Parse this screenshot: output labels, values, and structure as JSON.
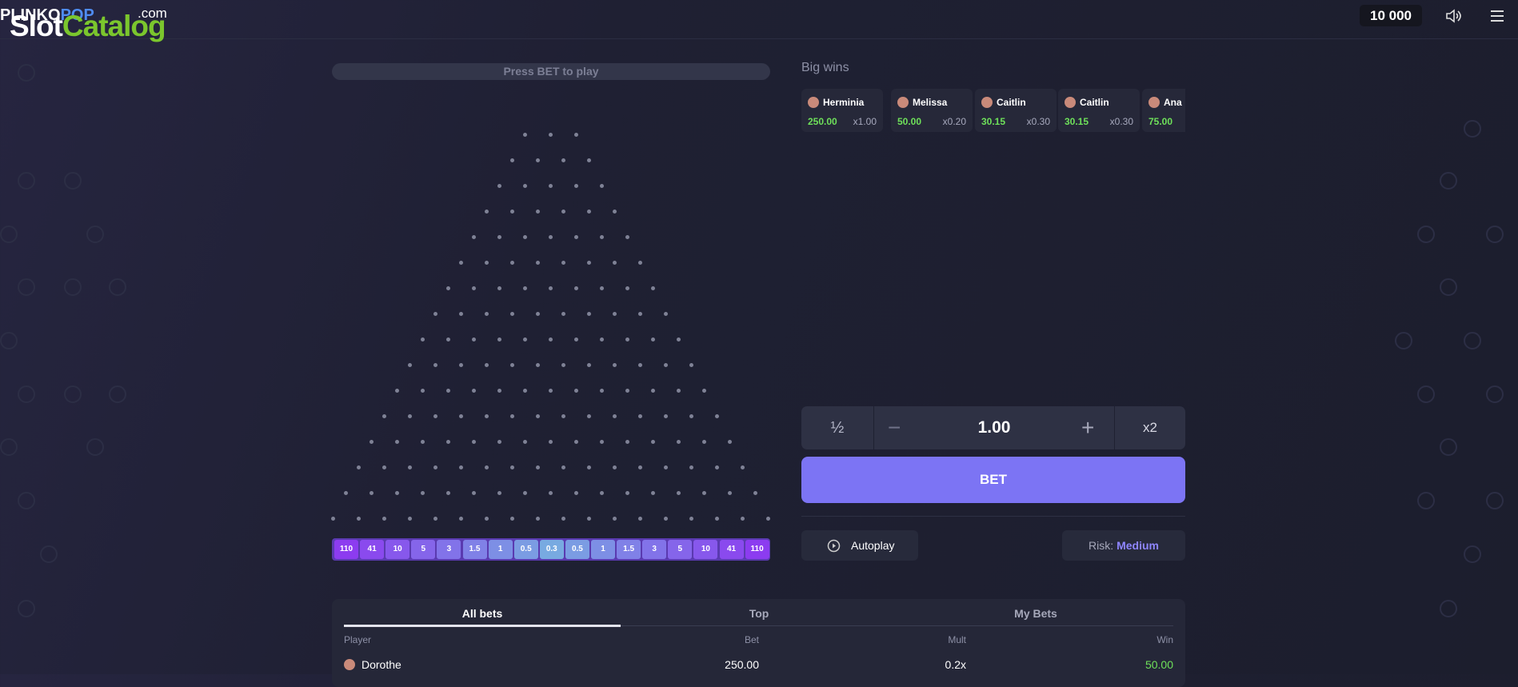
{
  "header": {
    "logo_left": "PLINKO",
    "logo_right": "POP",
    "watermark_slot": "Slot",
    "watermark_catalog": "Catalog",
    "watermark_com": ".com",
    "balance": "10 000"
  },
  "board": {
    "status": "Press BET to play",
    "multipliers": [
      110,
      41,
      10,
      5,
      3,
      1.5,
      1,
      0.5,
      0.3,
      0.5,
      1,
      1.5,
      3,
      5,
      10,
      41,
      110
    ]
  },
  "big_wins": {
    "title": "Big wins",
    "items": [
      {
        "name": "Herminia",
        "amount": "250.00",
        "mult": "x1.00"
      },
      {
        "name": "Melissa",
        "amount": "50.00",
        "mult": "x0.20"
      },
      {
        "name": "Caitlin",
        "amount": "30.15",
        "mult": "x0.30"
      },
      {
        "name": "Caitlin",
        "amount": "30.15",
        "mult": "x0.30"
      },
      {
        "name": "Ana",
        "amount": "75.00"
      }
    ]
  },
  "controls": {
    "half": "½",
    "amount": "1.00",
    "double": "x2",
    "bet": "BET",
    "autoplay": "Autoplay",
    "risk_label": "Risk:",
    "risk_value": "Medium"
  },
  "bets": {
    "tabs": [
      "All bets",
      "Top",
      "My Bets"
    ],
    "columns": [
      "Player",
      "Bet",
      "Mult",
      "Win"
    ],
    "rows": [
      [
        "Dorothe",
        "250.00",
        "0.2x",
        "50.00"
      ]
    ]
  }
}
